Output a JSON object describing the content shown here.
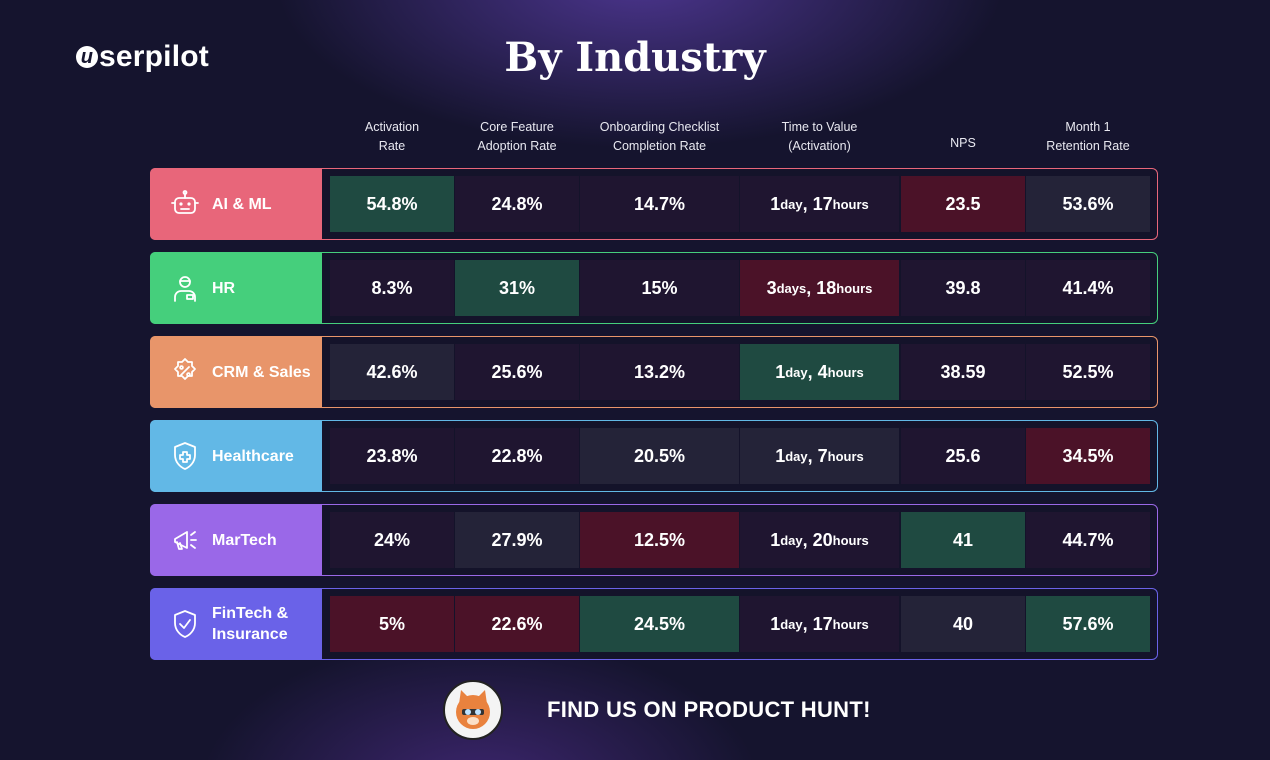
{
  "brand": {
    "logo_text": "serpilot",
    "logo_mark": "u"
  },
  "title": "By Industry",
  "footer": {
    "cta": "FIND US ON PRODUCT HUNT!",
    "badge_text": "Product Hunt"
  },
  "colors": {
    "background": "#15142e",
    "cell_green": "#1f4a41",
    "cell_red": "#4b1228",
    "cell_slate": "#242338",
    "cell_dark": "#1f1530",
    "ai_ml": "#e8667a",
    "hr": "#45cf7c",
    "crm_sales": "#e8956a",
    "healthcare": "#62b8e6",
    "martech": "#9a68e8",
    "fintech": "#6a62e8"
  },
  "chart_data": {
    "type": "table",
    "title": "By Industry",
    "columns": [
      "Activation Rate",
      "Core Feature Adoption Rate",
      "Onboarding Checklist Completion Rate",
      "Time to Value (Activation)",
      "NPS",
      "Month 1 Retention Rate"
    ],
    "rows": [
      {
        "industry": "AI & ML",
        "icon": "robot-icon",
        "color": "#e8667a",
        "values": [
          "54.8%",
          "24.8%",
          "14.7%",
          "1 day, 17 hours",
          "23.5",
          "53.6%"
        ],
        "shading": [
          "green",
          "dark",
          "dark",
          "dark",
          "red",
          "slate"
        ]
      },
      {
        "industry": "HR",
        "icon": "employee-icon",
        "color": "#45cf7c",
        "values": [
          "8.3%",
          "31%",
          "15%",
          "3 days, 18 hours",
          "39.8",
          "41.4%"
        ],
        "shading": [
          "dark",
          "green",
          "dark",
          "red",
          "dark",
          "dark"
        ]
      },
      {
        "industry": "CRM & Sales",
        "icon": "percent-badge-icon",
        "color": "#e8956a",
        "values": [
          "42.6%",
          "25.6%",
          "13.2%",
          "1 day, 4 hours",
          "38.59",
          "52.5%"
        ],
        "shading": [
          "slate",
          "dark",
          "dark",
          "green",
          "dark",
          "dark"
        ]
      },
      {
        "industry": "Healthcare",
        "icon": "medical-shield-icon",
        "color": "#62b8e6",
        "values": [
          "23.8%",
          "22.8%",
          "20.5%",
          "1 day, 7 hours",
          "25.6",
          "34.5%"
        ],
        "shading": [
          "dark",
          "dark",
          "slate",
          "slate",
          "dark",
          "red"
        ]
      },
      {
        "industry": "MarTech",
        "icon": "megaphone-icon",
        "color": "#9a68e8",
        "values": [
          "24%",
          "27.9%",
          "12.5%",
          "1 day, 20 hours",
          "41",
          "44.7%"
        ],
        "shading": [
          "dark",
          "slate",
          "red",
          "dark",
          "green",
          "dark"
        ]
      },
      {
        "industry": "FinTech & Insurance",
        "icon": "shield-check-icon",
        "color": "#6a62e8",
        "values": [
          "5%",
          "22.6%",
          "24.5%",
          "1 day, 17 hours",
          "40",
          "57.6%"
        ],
        "shading": [
          "red",
          "red",
          "green",
          "dark",
          "slate",
          "green"
        ]
      }
    ]
  }
}
